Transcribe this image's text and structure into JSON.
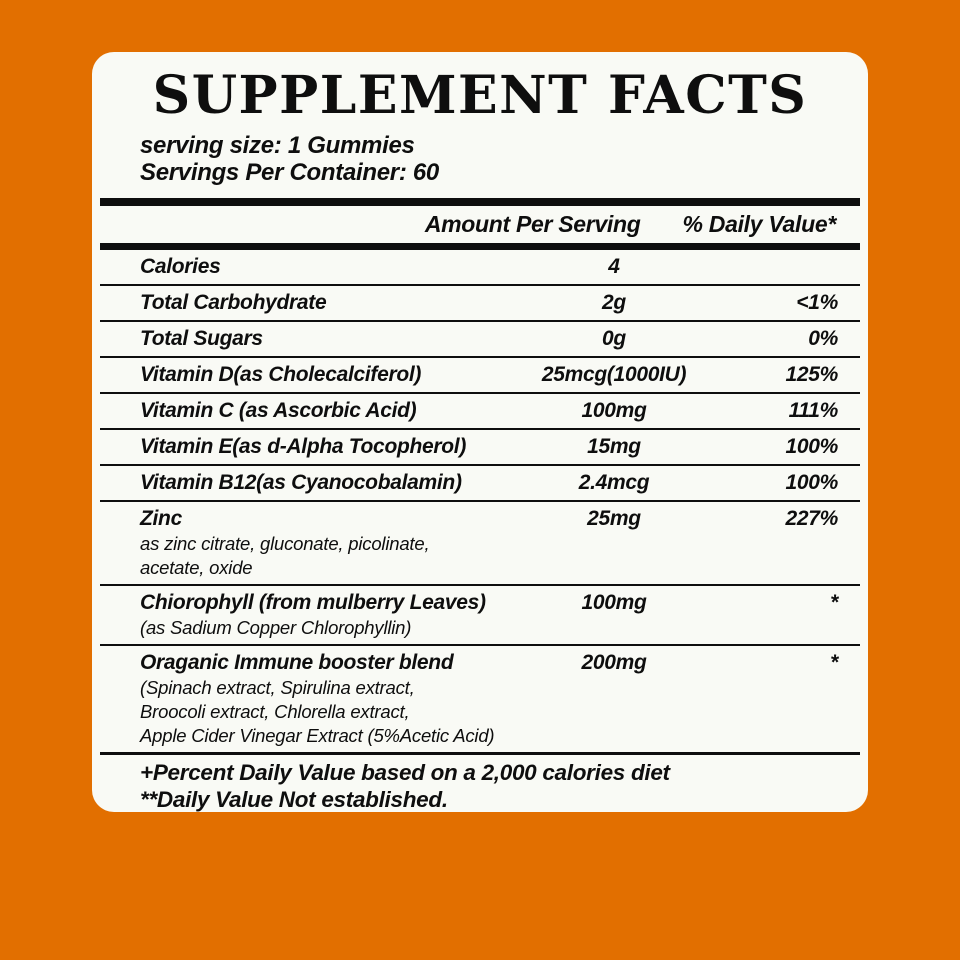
{
  "colors": {
    "background": "#E26F00",
    "panel": "#F9FAF5",
    "text": "#0E0E0E"
  },
  "title": "SUPPLEMENT FACTS",
  "serving": {
    "size_line": "serving size: 1 Gummies",
    "per_container_line": "Servings Per Container: 60"
  },
  "table": {
    "headers": {
      "amount": "Amount Per Serving",
      "daily_value": "% Daily Value*"
    },
    "rows": [
      {
        "name": "Calories",
        "amount": "4",
        "dv": ""
      },
      {
        "name": "Total Carbohydrate",
        "amount": "2g",
        "dv": "<1%"
      },
      {
        "name": "Total Sugars",
        "amount": "0g",
        "dv": "0%"
      },
      {
        "name": "Vitamin D(as Cholecalciferol)",
        "amount": "25mcg(1000IU)",
        "dv": "125%"
      },
      {
        "name": "Vitamin C (as Ascorbic Acid)",
        "amount": "100mg",
        "dv": "111%"
      },
      {
        "name": "Vitamin E(as d-Alpha Tocopherol)",
        "amount": "15mg",
        "dv": "100%"
      },
      {
        "name": "Vitamin B12(as Cyanocobalamin)",
        "amount": "2.4mcg",
        "dv": "100%"
      },
      {
        "name": "Zinc",
        "sub": "as zinc citrate, gluconate, picolinate,\nacetate, oxide",
        "amount": "25mg",
        "dv": "227%"
      },
      {
        "name": "Chiorophyll (from mulberry Leaves)",
        "sub": "(as Sadium Copper Chlorophyllin)",
        "amount": "100mg",
        "dv": "*"
      },
      {
        "name": "Oraganic Immune booster blend",
        "sub": "(Spinach extract, Spirulina extract,\nBroocoli extract, Chlorella extract,\nApple Cider Vinegar Extract (5%Acetic Acid)",
        "amount": "200mg",
        "dv": "*"
      }
    ],
    "footnotes": [
      "+Percent Daily Value based on a 2,000 calories diet",
      "**Daily Value Not established."
    ]
  }
}
